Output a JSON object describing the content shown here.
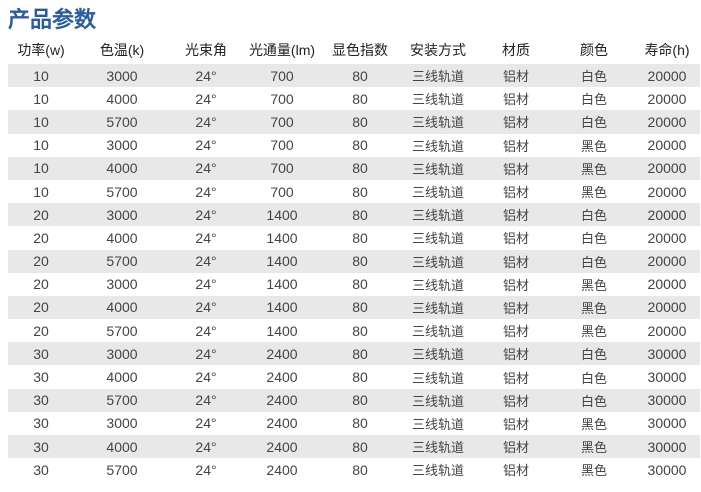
{
  "title": "产品参数",
  "headers": [
    "功率(w)",
    "色温(k)",
    "光束角",
    "光通量(lm)",
    "显色指数",
    "安装方式",
    "材质",
    "颜色",
    "寿命(h)"
  ],
  "rows": [
    [
      "10",
      "3000",
      "24°",
      "700",
      "80",
      "三线轨道",
      "铝材",
      "白色",
      "20000"
    ],
    [
      "10",
      "4000",
      "24°",
      "700",
      "80",
      "三线轨道",
      "铝材",
      "白色",
      "20000"
    ],
    [
      "10",
      "5700",
      "24°",
      "700",
      "80",
      "三线轨道",
      "铝材",
      "白色",
      "20000"
    ],
    [
      "10",
      "3000",
      "24°",
      "700",
      "80",
      "三线轨道",
      "铝材",
      "黑色",
      "20000"
    ],
    [
      "10",
      "4000",
      "24°",
      "700",
      "80",
      "三线轨道",
      "铝材",
      "黑色",
      "20000"
    ],
    [
      "10",
      "5700",
      "24°",
      "700",
      "80",
      "三线轨道",
      "铝材",
      "黑色",
      "20000"
    ],
    [
      "20",
      "3000",
      "24°",
      "1400",
      "80",
      "三线轨道",
      "铝材",
      "白色",
      "20000"
    ],
    [
      "20",
      "4000",
      "24°",
      "1400",
      "80",
      "三线轨道",
      "铝材",
      "白色",
      "20000"
    ],
    [
      "20",
      "5700",
      "24°",
      "1400",
      "80",
      "三线轨道",
      "铝材",
      "白色",
      "20000"
    ],
    [
      "20",
      "3000",
      "24°",
      "1400",
      "80",
      "三线轨道",
      "铝材",
      "黑色",
      "20000"
    ],
    [
      "20",
      "4000",
      "24°",
      "1400",
      "80",
      "三线轨道",
      "铝材",
      "黑色",
      "20000"
    ],
    [
      "20",
      "5700",
      "24°",
      "1400",
      "80",
      "三线轨道",
      "铝材",
      "黑色",
      "20000"
    ],
    [
      "30",
      "3000",
      "24°",
      "2400",
      "80",
      "三线轨道",
      "铝材",
      "白色",
      "30000"
    ],
    [
      "30",
      "4000",
      "24°",
      "2400",
      "80",
      "三线轨道",
      "铝材",
      "白色",
      "30000"
    ],
    [
      "30",
      "5700",
      "24°",
      "2400",
      "80",
      "三线轨道",
      "铝材",
      "白色",
      "30000"
    ],
    [
      "30",
      "3000",
      "24°",
      "2400",
      "80",
      "三线轨道",
      "铝材",
      "黑色",
      "30000"
    ],
    [
      "30",
      "4000",
      "24°",
      "2400",
      "80",
      "三线轨道",
      "铝材",
      "黑色",
      "30000"
    ],
    [
      "30",
      "5700",
      "24°",
      "2400",
      "80",
      "三线轨道",
      "铝材",
      "黑色",
      "30000"
    ]
  ]
}
